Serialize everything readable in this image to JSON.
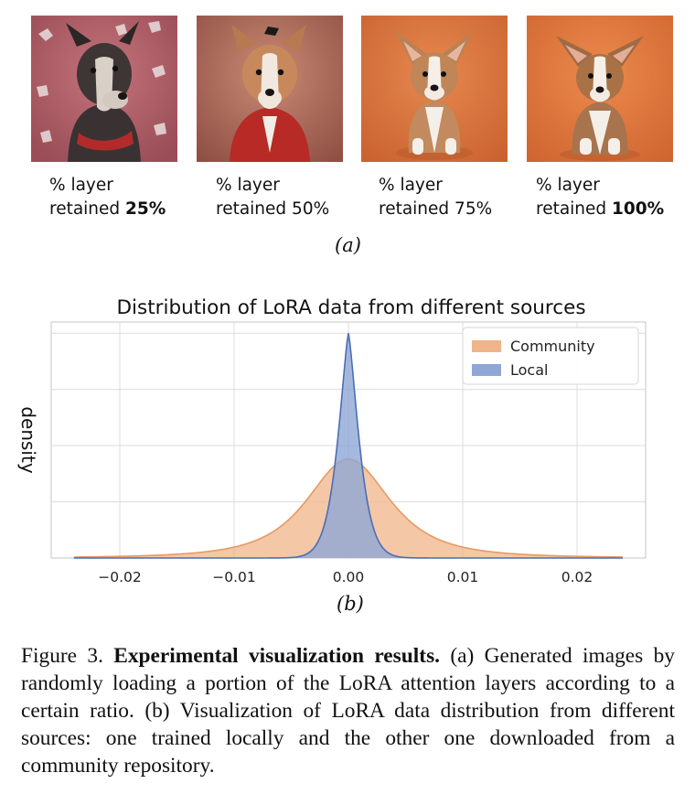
{
  "panel_a": {
    "items": [
      {
        "line1": "% layer",
        "prefix": "retained ",
        "value": "25%",
        "bold": true
      },
      {
        "line1": "% layer",
        "prefix": "retained ",
        "value": "50%",
        "bold": false
      },
      {
        "line1": "% layer",
        "prefix": "retained ",
        "value": "75%",
        "bold": false
      },
      {
        "line1": "% layer",
        "prefix": "retained ",
        "value": "100%",
        "bold": true
      }
    ],
    "label": "(a)"
  },
  "panel_b_label": "(b)",
  "chart_data": {
    "type": "area",
    "title": "Distribution of LoRA data from different sources",
    "xlabel": "",
    "ylabel": "density",
    "xlim": [
      -0.026,
      0.026
    ],
    "ylim": [
      0,
      1.05
    ],
    "x_ticks": [
      -0.02,
      -0.01,
      0.0,
      0.01,
      0.02
    ],
    "x_tick_labels": [
      "−0.02",
      "−0.01",
      "0.00",
      "0.01",
      "0.02"
    ],
    "grid": true,
    "legend": "top-right",
    "series": [
      {
        "name": "Community",
        "color": "#f0b48a",
        "edge": "#e69a61",
        "center": 0.0,
        "peak": 0.44,
        "spread": 0.0045,
        "distribution": "laplace-like, heavy tails",
        "range": [
          -0.024,
          0.024
        ]
      },
      {
        "name": "Local",
        "color": "#8fa6d6",
        "edge": "#4a6fb5",
        "center": 0.0,
        "peak": 1.0,
        "spread": 0.00078,
        "distribution": "sharp peak",
        "range": [
          -0.024,
          0.024
        ]
      }
    ]
  },
  "caption": {
    "figure_label": "Figure 3.",
    "bold_title": "Experimental visualization results.",
    "body": "(a) Generated images by randomly loading a portion of the LoRA attention layers according to a certain ratio. (b) Visualization of LoRA data distribution from different sources: one trained locally and the other one downloaded from a community repository."
  },
  "colors": {
    "img1_bg": "#b05c64",
    "img2_bg": "#b86a55",
    "img3_bg": "#d9733e",
    "img4_bg": "#e07a3d"
  }
}
